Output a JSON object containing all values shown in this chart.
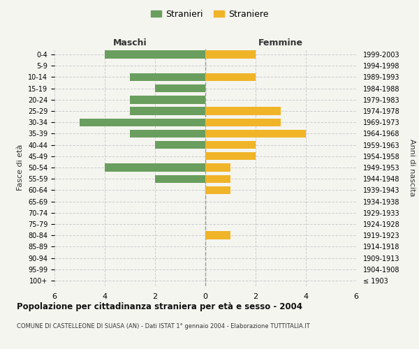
{
  "age_groups": [
    "100+",
    "95-99",
    "90-94",
    "85-89",
    "80-84",
    "75-79",
    "70-74",
    "65-69",
    "60-64",
    "55-59",
    "50-54",
    "45-49",
    "40-44",
    "35-39",
    "30-34",
    "25-29",
    "20-24",
    "15-19",
    "10-14",
    "5-9",
    "0-4"
  ],
  "birth_years": [
    "≤ 1903",
    "1904-1908",
    "1909-1913",
    "1914-1918",
    "1919-1923",
    "1924-1928",
    "1929-1933",
    "1934-1938",
    "1939-1943",
    "1944-1948",
    "1949-1953",
    "1954-1958",
    "1959-1963",
    "1964-1968",
    "1969-1973",
    "1974-1978",
    "1979-1983",
    "1984-1988",
    "1989-1993",
    "1994-1998",
    "1999-2003"
  ],
  "males": [
    0,
    0,
    0,
    0,
    0,
    0,
    0,
    0,
    0,
    2,
    4,
    0,
    2,
    3,
    5,
    3,
    3,
    2,
    3,
    0,
    4
  ],
  "females": [
    0,
    0,
    0,
    0,
    1,
    0,
    0,
    0,
    1,
    1,
    1,
    2,
    2,
    4,
    3,
    3,
    0,
    0,
    2,
    0,
    2
  ],
  "male_color": "#6a9e5e",
  "female_color": "#f0b429",
  "title_main": "Popolazione per cittadinanza straniera per età e sesso - 2004",
  "title_sub": "COMUNE DI CASTELLEONE DI SUASA (AN) - Dati ISTAT 1° gennaio 2004 - Elaborazione TUTTITALIA.IT",
  "xlabel_left": "Maschi",
  "xlabel_right": "Femmine",
  "ylabel_left": "Fasce di età",
  "ylabel_right": "Anni di nascita",
  "legend_male": "Stranieri",
  "legend_female": "Straniere",
  "xlim": 6,
  "background_color": "#f5f5f0",
  "grid_color": "#cccccc"
}
